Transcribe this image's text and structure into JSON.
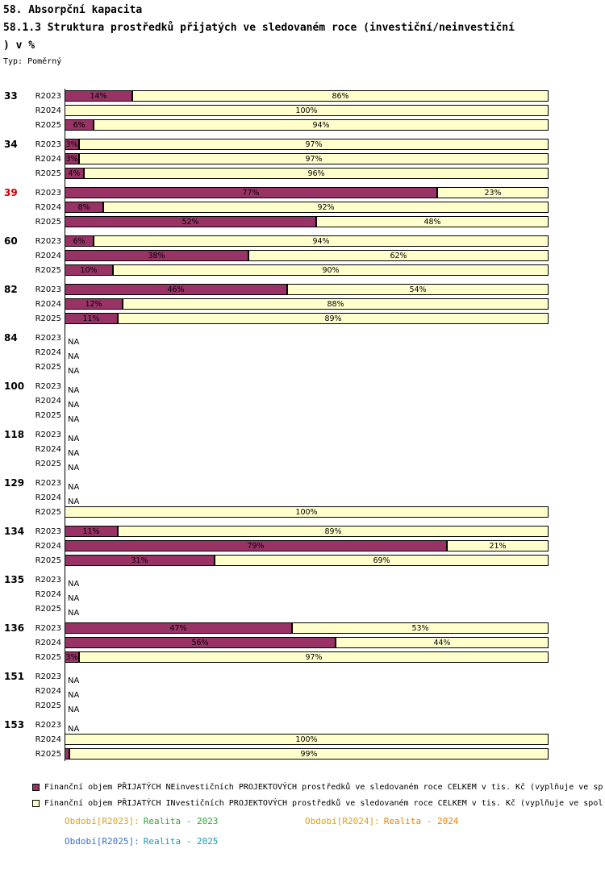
{
  "header": {
    "title": "58. Absorpční kapacita",
    "subtitle1": "58.1.3 Struktura prostředků přijatých ve sledovaném roce (investiční/neinvestiční",
    "subtitle2": ") v %",
    "type_label": "Typ: Poměrný"
  },
  "chart_data": {
    "type": "bar",
    "orientation": "horizontal",
    "stacked": true,
    "unit": "%",
    "x_range": [
      0,
      100
    ],
    "na_text": "NA",
    "series": [
      {
        "name": "NEinvestiční",
        "color": "#993366"
      },
      {
        "name": "INvestiční",
        "color": "#FFFFCC"
      }
    ],
    "groups": [
      {
        "id": "33",
        "id_color": "#000000",
        "rows": [
          {
            "label": "R2023",
            "ne": 14,
            "inv": 86,
            "ne_label": "14%",
            "inv_label": "86%"
          },
          {
            "label": "R2024",
            "ne": 0,
            "inv": 100,
            "ne_label": "",
            "inv_label": "100%"
          },
          {
            "label": "R2025",
            "ne": 6,
            "inv": 94,
            "ne_label": "6%",
            "inv_label": "94%"
          }
        ]
      },
      {
        "id": "34",
        "id_color": "#000000",
        "rows": [
          {
            "label": "R2023",
            "ne": 3,
            "inv": 97,
            "ne_label": "3%",
            "inv_label": "97%"
          },
          {
            "label": "R2024",
            "ne": 3,
            "inv": 97,
            "ne_label": "3%",
            "inv_label": "97%"
          },
          {
            "label": "R2025",
            "ne": 4,
            "inv": 96,
            "ne_label": "4%",
            "inv_label": "96%"
          }
        ]
      },
      {
        "id": "39",
        "id_color": "#CC0000",
        "rows": [
          {
            "label": "R2023",
            "ne": 77,
            "inv": 23,
            "ne_label": "77%",
            "inv_label": "23%"
          },
          {
            "label": "R2024",
            "ne": 8,
            "inv": 92,
            "ne_label": "8%",
            "inv_label": "92%"
          },
          {
            "label": "R2025",
            "ne": 52,
            "inv": 48,
            "ne_label": "52%",
            "inv_label": "48%"
          }
        ]
      },
      {
        "id": "60",
        "id_color": "#000000",
        "rows": [
          {
            "label": "R2023",
            "ne": 6,
            "inv": 94,
            "ne_label": "6%",
            "inv_label": "94%"
          },
          {
            "label": "R2024",
            "ne": 38,
            "inv": 62,
            "ne_label": "38%",
            "inv_label": "62%"
          },
          {
            "label": "R2025",
            "ne": 10,
            "inv": 90,
            "ne_label": "10%",
            "inv_label": "90%"
          }
        ]
      },
      {
        "id": "82",
        "id_color": "#000000",
        "rows": [
          {
            "label": "R2023",
            "ne": 46,
            "inv": 54,
            "ne_label": "46%",
            "inv_label": "54%"
          },
          {
            "label": "R2024",
            "ne": 12,
            "inv": 88,
            "ne_label": "12%",
            "inv_label": "88%"
          },
          {
            "label": "R2025",
            "ne": 11,
            "inv": 89,
            "ne_label": "11%",
            "inv_label": "89%"
          }
        ]
      },
      {
        "id": "84",
        "id_color": "#000000",
        "rows": [
          {
            "label": "R2023",
            "na": true
          },
          {
            "label": "R2024",
            "na": true
          },
          {
            "label": "R2025",
            "na": true
          }
        ]
      },
      {
        "id": "100",
        "id_color": "#000000",
        "rows": [
          {
            "label": "R2023",
            "na": true
          },
          {
            "label": "R2024",
            "na": true
          },
          {
            "label": "R2025",
            "na": true
          }
        ]
      },
      {
        "id": "118",
        "id_color": "#000000",
        "rows": [
          {
            "label": "R2023",
            "na": true
          },
          {
            "label": "R2024",
            "na": true
          },
          {
            "label": "R2025",
            "na": true
          }
        ]
      },
      {
        "id": "129",
        "id_color": "#000000",
        "rows": [
          {
            "label": "R2023",
            "na": true
          },
          {
            "label": "R2024",
            "na": true
          },
          {
            "label": "R2025",
            "ne": 0,
            "inv": 100,
            "ne_label": "",
            "inv_label": "100%"
          }
        ]
      },
      {
        "id": "134",
        "id_color": "#000000",
        "rows": [
          {
            "label": "R2023",
            "ne": 11,
            "inv": 89,
            "ne_label": "11%",
            "inv_label": "89%"
          },
          {
            "label": "R2024",
            "ne": 79,
            "inv": 21,
            "ne_label": "79%",
            "inv_label": "21%"
          },
          {
            "label": "R2025",
            "ne": 31,
            "inv": 69,
            "ne_label": "31%",
            "inv_label": "69%"
          }
        ]
      },
      {
        "id": "135",
        "id_color": "#000000",
        "rows": [
          {
            "label": "R2023",
            "na": true
          },
          {
            "label": "R2024",
            "na": true
          },
          {
            "label": "R2025",
            "na": true
          }
        ]
      },
      {
        "id": "136",
        "id_color": "#000000",
        "rows": [
          {
            "label": "R2023",
            "ne": 47,
            "inv": 53,
            "ne_label": "47%",
            "inv_label": "53%"
          },
          {
            "label": "R2024",
            "ne": 56,
            "inv": 44,
            "ne_label": "56%",
            "inv_label": "44%"
          },
          {
            "label": "R2025",
            "ne": 3,
            "inv": 97,
            "ne_label": "3%",
            "inv_label": "97%"
          }
        ]
      },
      {
        "id": "151",
        "id_color": "#000000",
        "rows": [
          {
            "label": "R2023",
            "na": true
          },
          {
            "label": "R2024",
            "na": true
          },
          {
            "label": "R2025",
            "na": true
          }
        ]
      },
      {
        "id": "153",
        "id_color": "#000000",
        "rows": [
          {
            "label": "R2023",
            "na": true
          },
          {
            "label": "R2024",
            "ne": 0,
            "inv": 100,
            "ne_label": "",
            "inv_label": "100%"
          },
          {
            "label": "R2025",
            "ne": 1,
            "inv": 99,
            "ne_label": "",
            "inv_label": "99%"
          }
        ]
      }
    ]
  },
  "legend": [
    {
      "color": "#993366",
      "text": "Finanční objem PŘIJATÝCH NEinvestičních PROJEKTOVÝCH prostředků ve sledovaném roce CELKEM v tis. Kč (vyplňuje ve sp"
    },
    {
      "color": "#FFFFCC",
      "text": "Finanční objem PŘIJATÝCH INvestičních PROJEKTOVÝCH prostředků ve sledovaném roce CELKEM v tis. Kč (vyplňuje ve spol"
    }
  ],
  "footer": {
    "items": [
      {
        "label": "Období[R2023]:",
        "label_color": "#DFA018",
        "value": "Realita - 2023",
        "value_color": "#33A333"
      },
      {
        "label": "Období[R2024]:",
        "label_color": "#DFA018",
        "value": "Realita - 2024",
        "value_color": "#F08000"
      },
      {
        "label": "Období[R2025]:",
        "label_color": "#3B6FD4",
        "value": "Realita - 2025",
        "value_color": "#1F97B0"
      }
    ]
  }
}
